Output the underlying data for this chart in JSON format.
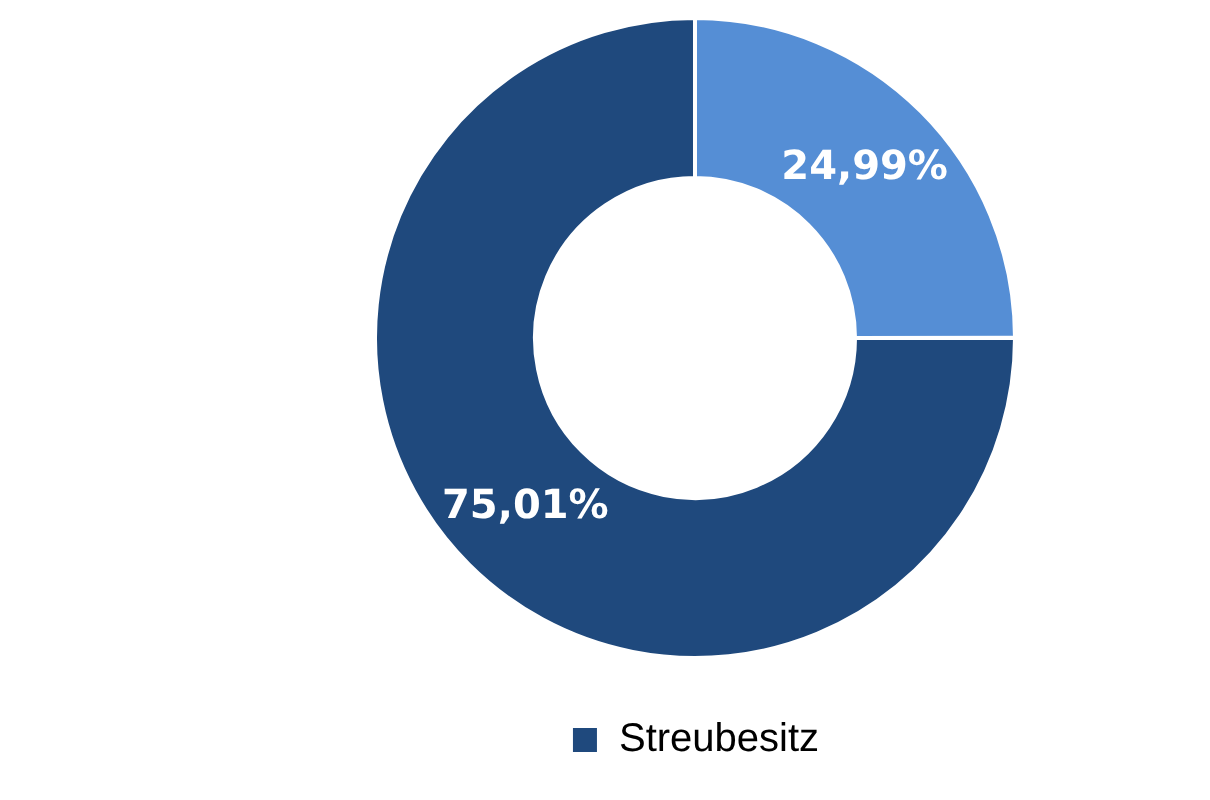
{
  "chart_data": {
    "type": "donut",
    "categories": [
      null,
      "Streubesitz"
    ],
    "values": [
      24.99,
      75.01
    ],
    "colors": [
      "#558ed5",
      "#1f497d"
    ],
    "value_labels": [
      "24,99%",
      "75,01%"
    ],
    "legend": "bottom"
  }
}
